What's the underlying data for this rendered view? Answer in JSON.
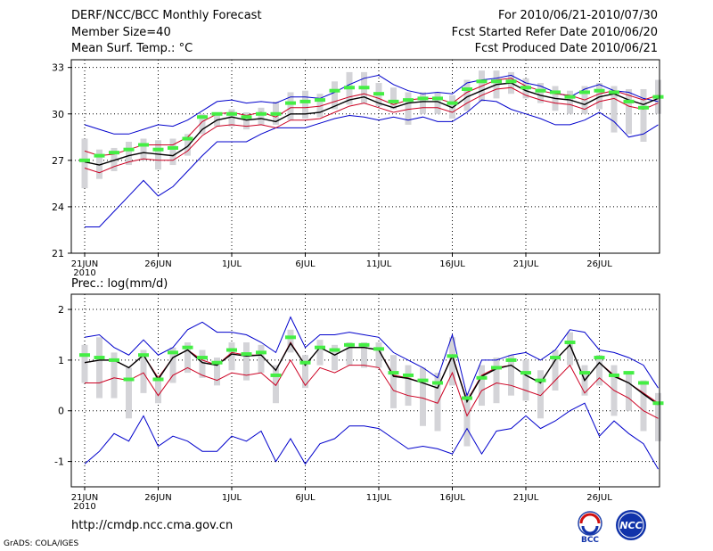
{
  "header": {
    "left": [
      "DERF/NCC/BCC Monthly Forecast",
      "Member Size=40",
      "Mean Surf. Temp.: °C"
    ],
    "right": [
      "For 2010/06/21-2010/07/30",
      "Fcst Started Refer Date 2010/06/20",
      "Fcst Produced Date 2010/06/21"
    ]
  },
  "footer": {
    "url": "http://cmdp.ncc.cma.gov.cn",
    "credit": "GrADS: COLA/IGES",
    "logo1_text": "BCC",
    "logo2_text": "NCC"
  },
  "colors": {
    "envelope": "#0000cc",
    "spread": "#cc0022",
    "mean": "#000000",
    "box": "#d4d4d8",
    "median": "#44ee44"
  },
  "chart_data": [
    {
      "type": "line",
      "title": "Mean Surf. Temp.: °C",
      "xticks": [
        "21JUN",
        "26JUN",
        "1JUL",
        "6JUL",
        "11JUL",
        "16JUL",
        "21JUL",
        "26JUL"
      ],
      "year_label": "2010",
      "ylim": [
        21,
        33.5
      ],
      "yticks": [
        21,
        24,
        27,
        30,
        33
      ],
      "series": [
        {
          "name": "max",
          "values": [
            29.3,
            29.0,
            28.7,
            28.7,
            29.0,
            29.3,
            29.2,
            29.6,
            30.2,
            30.8,
            30.9,
            30.7,
            30.8,
            30.7,
            31.1,
            31.1,
            31.0,
            31.4,
            31.9,
            32.3,
            32.5,
            31.9,
            31.5,
            31.3,
            31.4,
            31.3,
            32.0,
            32.2,
            32.3,
            32.5,
            32.0,
            31.8,
            31.4,
            31.1,
            31.6,
            31.9,
            31.5,
            31.4,
            31.0,
            30.8
          ]
        },
        {
          "name": "upper",
          "values": [
            27.6,
            27.3,
            27.4,
            27.7,
            28.0,
            28.0,
            28.0,
            28.5,
            29.5,
            30.0,
            30.1,
            29.9,
            30.1,
            29.8,
            30.4,
            30.4,
            30.5,
            30.8,
            31.1,
            31.3,
            31.0,
            30.6,
            30.9,
            31.0,
            31.0,
            30.7,
            31.4,
            31.8,
            32.2,
            32.3,
            31.8,
            31.5,
            31.3,
            31.2,
            30.9,
            31.3,
            31.5,
            31.2,
            30.9,
            31.2
          ]
        },
        {
          "name": "mean",
          "values": [
            26.9,
            26.7,
            27.0,
            27.3,
            27.5,
            27.4,
            27.3,
            27.9,
            29.0,
            29.6,
            29.8,
            29.6,
            29.7,
            29.5,
            30.0,
            30.0,
            30.1,
            30.5,
            30.9,
            31.1,
            30.7,
            30.4,
            30.7,
            30.8,
            30.8,
            30.4,
            31.1,
            31.5,
            31.9,
            32.0,
            31.5,
            31.2,
            31.0,
            30.9,
            30.6,
            31.1,
            31.3,
            30.9,
            30.6,
            31.0
          ]
        },
        {
          "name": "lower",
          "values": [
            26.5,
            26.2,
            26.6,
            26.9,
            27.1,
            27.0,
            27.0,
            27.6,
            28.6,
            29.2,
            29.3,
            29.2,
            29.3,
            29.1,
            29.6,
            29.6,
            29.7,
            30.1,
            30.5,
            30.7,
            30.4,
            30.1,
            30.3,
            30.4,
            30.4,
            30.1,
            30.7,
            31.2,
            31.6,
            31.7,
            31.2,
            30.9,
            30.7,
            30.6,
            30.3,
            30.8,
            31.0,
            30.5,
            30.3,
            30.7
          ]
        },
        {
          "name": "min",
          "values": [
            22.7,
            22.7,
            23.7,
            24.7,
            25.7,
            24.7,
            25.3,
            26.3,
            27.3,
            28.2,
            28.2,
            28.2,
            28.7,
            29.1,
            29.1,
            29.1,
            29.4,
            29.7,
            29.9,
            29.8,
            29.6,
            29.8,
            29.6,
            29.8,
            29.5,
            29.5,
            30.1,
            30.9,
            30.8,
            30.3,
            30.0,
            29.7,
            29.3,
            29.3,
            29.6,
            30.1,
            29.5,
            28.5,
            28.7,
            29.3
          ]
        },
        {
          "name": "box_low",
          "values": [
            25.2,
            25.8,
            26.3,
            26.7,
            27.0,
            26.4,
            26.7,
            27.3,
            28.7,
            29.2,
            29.2,
            29.0,
            29.3,
            29.3,
            29.6,
            29.7,
            29.8,
            30.3,
            30.6,
            30.7,
            30.5,
            30.3,
            29.3,
            30.0,
            30.0,
            29.7,
            30.2,
            30.8,
            31.0,
            31.3,
            31.0,
            30.7,
            30.2,
            30.0,
            30.0,
            30.3,
            28.8,
            28.7,
            28.2,
            30.0
          ]
        },
        {
          "name": "box_high",
          "values": [
            28.4,
            27.7,
            27.8,
            28.2,
            28.4,
            28.3,
            28.4,
            28.7,
            30.0,
            30.1,
            30.3,
            30.1,
            30.4,
            30.8,
            31.4,
            31.5,
            31.3,
            32.1,
            32.7,
            32.7,
            32.0,
            31.7,
            31.4,
            31.4,
            31.4,
            31.2,
            32.2,
            32.8,
            32.8,
            32.7,
            32.3,
            32.0,
            31.8,
            31.5,
            31.8,
            32.0,
            31.8,
            31.6,
            31.6,
            32.2
          ]
        },
        {
          "name": "median",
          "values": [
            27.0,
            27.3,
            27.5,
            27.7,
            28.0,
            27.7,
            27.8,
            28.4,
            29.8,
            30.0,
            30.0,
            29.8,
            30.0,
            30.0,
            30.7,
            30.8,
            30.9,
            31.5,
            31.7,
            31.7,
            31.3,
            30.8,
            30.9,
            31.0,
            31.0,
            30.7,
            31.6,
            32.1,
            32.1,
            32.1,
            31.7,
            31.5,
            31.4,
            31.1,
            31.4,
            31.5,
            31.4,
            30.8,
            30.4,
            31.1
          ]
        }
      ]
    },
    {
      "type": "line",
      "title": "Prec.: log(mm/d)",
      "xticks": [
        "21JUN",
        "26JUN",
        "1JUL",
        "6JUL",
        "11JUL",
        "16JUL",
        "21JUL",
        "26JUL"
      ],
      "year_label": "2010",
      "ylim": [
        -1.5,
        2.3
      ],
      "yticks": [
        -1,
        0,
        1,
        2
      ],
      "series": [
        {
          "name": "max",
          "values": [
            1.45,
            1.5,
            1.25,
            1.1,
            1.4,
            1.1,
            1.25,
            1.6,
            1.75,
            1.55,
            1.55,
            1.5,
            1.35,
            1.15,
            1.85,
            1.25,
            1.5,
            1.5,
            1.55,
            1.5,
            1.45,
            1.15,
            1.0,
            0.85,
            0.65,
            1.5,
            0.3,
            1.0,
            1.0,
            1.1,
            1.15,
            1.0,
            1.2,
            1.6,
            1.55,
            1.2,
            1.15,
            1.05,
            0.9,
            0.45
          ]
        },
        {
          "name": "upper",
          "values": [
            0.95,
            1.0,
            1.0,
            0.85,
            1.1,
            0.65,
            1.05,
            1.2,
            1.0,
            0.9,
            1.15,
            1.1,
            1.1,
            0.8,
            1.35,
            0.9,
            1.25,
            1.1,
            1.25,
            1.25,
            1.2,
            0.7,
            0.65,
            0.55,
            0.45,
            1.1,
            0.2,
            0.7,
            0.85,
            0.9,
            0.7,
            0.55,
            1.0,
            1.3,
            0.6,
            0.95,
            0.7,
            0.55,
            0.35,
            0.15
          ]
        },
        {
          "name": "mean",
          "values": [
            0.95,
            1.0,
            1.0,
            0.85,
            1.1,
            0.62,
            1.05,
            1.2,
            0.95,
            0.9,
            1.12,
            1.08,
            1.1,
            0.8,
            1.33,
            0.9,
            1.25,
            1.1,
            1.25,
            1.25,
            1.2,
            0.68,
            0.64,
            0.55,
            0.45,
            1.08,
            0.18,
            0.68,
            0.83,
            0.9,
            0.7,
            0.55,
            1.0,
            1.3,
            0.6,
            0.95,
            0.68,
            0.55,
            0.33,
            0.12
          ]
        },
        {
          "name": "lower",
          "values": [
            0.55,
            0.55,
            0.65,
            0.6,
            0.75,
            0.3,
            0.7,
            0.85,
            0.7,
            0.6,
            0.75,
            0.7,
            0.75,
            0.5,
            1.0,
            0.5,
            0.85,
            0.75,
            0.9,
            0.9,
            0.85,
            0.4,
            0.3,
            0.25,
            0.15,
            0.75,
            -0.1,
            0.4,
            0.55,
            0.5,
            0.4,
            0.3,
            0.6,
            0.9,
            0.35,
            0.65,
            0.4,
            0.25,
            0.0,
            -0.15
          ]
        },
        {
          "name": "min",
          "values": [
            -1.05,
            -0.8,
            -0.45,
            -0.6,
            -0.1,
            -0.7,
            -0.5,
            -0.6,
            -0.8,
            -0.8,
            -0.5,
            -0.6,
            -0.4,
            -1.0,
            -0.55,
            -1.05,
            -0.65,
            -0.55,
            -0.3,
            -0.3,
            -0.35,
            -0.55,
            -0.75,
            -0.7,
            -0.75,
            -0.85,
            -0.35,
            -0.85,
            -0.4,
            -0.35,
            -0.1,
            -0.35,
            -0.2,
            0.0,
            0.15,
            -0.5,
            -0.2,
            -0.45,
            -0.65,
            -1.15
          ]
        },
        {
          "name": "box_low",
          "values": [
            0.55,
            0.25,
            0.25,
            -0.15,
            0.35,
            0.15,
            0.55,
            0.75,
            0.65,
            0.5,
            0.8,
            0.6,
            0.75,
            0.15,
            1.15,
            0.45,
            0.9,
            0.8,
            0.9,
            0.85,
            0.85,
            0.05,
            0.1,
            -0.3,
            -0.4,
            0.5,
            -0.7,
            0.1,
            0.15,
            0.3,
            0.2,
            -0.15,
            0.4,
            0.9,
            0.3,
            0.5,
            -0.1,
            0.0,
            -0.4,
            -0.6
          ]
        },
        {
          "name": "box_high",
          "values": [
            1.3,
            1.45,
            1.15,
            0.85,
            1.2,
            0.7,
            1.25,
            1.35,
            1.2,
            1.05,
            1.35,
            1.35,
            1.3,
            0.9,
            1.6,
            1.1,
            1.4,
            1.3,
            1.35,
            1.35,
            1.35,
            1.1,
            0.9,
            0.85,
            0.75,
            1.45,
            0.35,
            0.9,
            1.05,
            1.1,
            1.0,
            0.8,
            1.2,
            1.55,
            0.9,
            1.1,
            0.9,
            0.75,
            0.6,
            0.35
          ]
        },
        {
          "name": "median",
          "values": [
            1.1,
            1.05,
            1.0,
            0.62,
            1.1,
            0.62,
            1.15,
            1.25,
            1.05,
            0.95,
            1.2,
            1.12,
            1.15,
            0.7,
            1.45,
            0.95,
            1.25,
            1.2,
            1.3,
            1.3,
            1.22,
            0.75,
            0.7,
            0.6,
            0.55,
            1.08,
            0.25,
            0.65,
            0.85,
            1.0,
            0.75,
            0.6,
            1.05,
            1.35,
            0.75,
            1.05,
            0.7,
            0.75,
            0.55,
            0.15
          ]
        }
      ]
    }
  ]
}
